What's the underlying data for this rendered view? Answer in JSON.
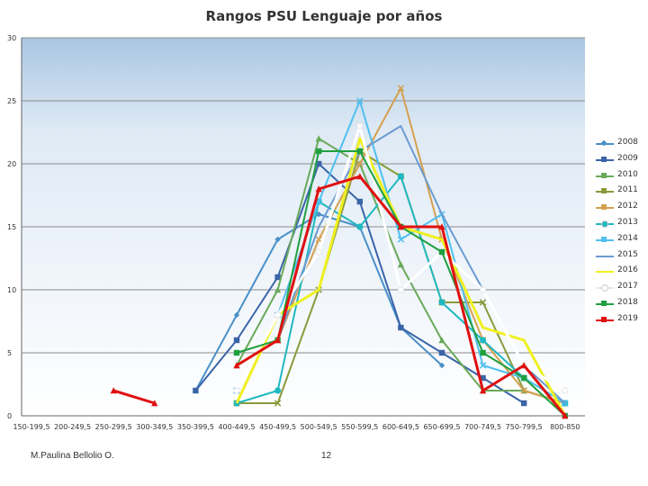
{
  "chart_data": {
    "type": "line",
    "title": "Rangos PSU Lenguaje por años",
    "xlabel": "",
    "ylabel": "",
    "ylim": [
      0,
      30
    ],
    "yticks": [
      0,
      5,
      10,
      15,
      20,
      25,
      30
    ],
    "categories": [
      "150-199,5",
      "200-249,5",
      "250-299,5",
      "300-349,5",
      "350-399,5",
      "400-449,5",
      "450-499,5",
      "500-549,5",
      "550-599,5",
      "600-649,5",
      "650-699,5",
      "700-749,5",
      "750-799,5",
      "800-850"
    ],
    "legend_position": "right",
    "series": [
      {
        "name": "2008",
        "color": "#4a90c8",
        "marker": "diamond",
        "values": [
          null,
          null,
          null,
          null,
          2,
          8,
          14,
          16,
          15,
          7,
          4,
          null,
          null,
          null
        ]
      },
      {
        "name": "2009",
        "color": "#3a64a8",
        "marker": "square",
        "values": [
          null,
          null,
          null,
          null,
          2,
          6,
          11,
          20,
          17,
          7,
          5,
          3,
          1,
          null
        ]
      },
      {
        "name": "2010",
        "color": "#6aaa5a",
        "marker": "triangle",
        "values": [
          null,
          null,
          null,
          null,
          null,
          4,
          10,
          22,
          20,
          12,
          6,
          2,
          2,
          1
        ]
      },
      {
        "name": "2011",
        "color": "#8a9a3a",
        "marker": "x",
        "values": [
          null,
          null,
          null,
          null,
          null,
          1,
          1,
          10,
          21,
          19,
          9,
          9,
          2,
          1
        ]
      },
      {
        "name": "2012",
        "color": "#d4a050",
        "marker": "x",
        "values": [
          null,
          null,
          null,
          null,
          null,
          null,
          6,
          14,
          20,
          26,
          14,
          6,
          2,
          1
        ]
      },
      {
        "name": "2013",
        "color": "#20b8c0",
        "marker": "circle",
        "values": [
          null,
          null,
          null,
          null,
          null,
          1,
          2,
          17,
          15,
          19,
          9,
          6,
          3,
          1
        ]
      },
      {
        "name": "2014",
        "color": "#50c0f0",
        "marker": "x",
        "values": [
          null,
          null,
          null,
          null,
          null,
          2,
          8,
          17,
          25,
          14,
          16,
          4,
          3,
          1
        ]
      },
      {
        "name": "2015",
        "color": "#6a9ad0",
        "marker": "none",
        "values": [
          null,
          null,
          null,
          null,
          null,
          4,
          6,
          15,
          21,
          23,
          16,
          10,
          4,
          1
        ]
      },
      {
        "name": "2016",
        "color": "#f0f020",
        "marker": "none",
        "values": [
          null,
          null,
          null,
          null,
          null,
          1,
          8,
          10,
          22,
          15,
          14,
          7,
          6,
          0
        ]
      },
      {
        "name": "2017",
        "color": "#ffffff",
        "marker": "circle",
        "values": [
          null,
          null,
          null,
          null,
          null,
          2,
          8,
          13,
          23,
          10,
          13,
          10,
          4,
          2
        ]
      },
      {
        "name": "2018",
        "color": "#20a040",
        "marker": "square",
        "values": [
          null,
          null,
          null,
          null,
          null,
          5,
          6,
          21,
          21,
          15,
          13,
          5,
          3,
          0
        ]
      },
      {
        "name": "2019",
        "color": "#e01010",
        "marker": "triangle",
        "values": [
          null,
          null,
          2,
          1,
          null,
          4,
          6,
          18,
          19,
          15,
          15,
          2,
          4,
          0
        ]
      }
    ]
  },
  "footer": {
    "author": "M.Paulina Bellolio O.",
    "page_number": "12"
  }
}
